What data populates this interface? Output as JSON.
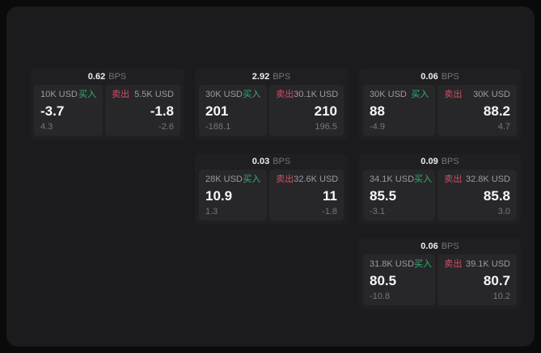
{
  "labels": {
    "unit": "BPS",
    "buy": "买入",
    "sell": "卖出"
  },
  "colors": {
    "buy_green": "#34b072",
    "sell_red": "#d14f63",
    "panel_bg": "#1b1b1d",
    "card_bg": "#1f1f22",
    "pane_bg": "#27272a"
  },
  "cards": [
    {
      "bps": "0.62",
      "buy": {
        "size": "10K USD",
        "value": "-3.7",
        "delta": "4.3"
      },
      "sell": {
        "size": "5.5K USD",
        "value": "-1.8",
        "delta": "-2.6"
      }
    },
    {
      "bps": "2.92",
      "buy": {
        "size": "30K USD",
        "value": "201",
        "delta": "-188.1"
      },
      "sell": {
        "size": "30.1K USD",
        "value": "210",
        "delta": "196.5"
      }
    },
    {
      "bps": "0.06",
      "buy": {
        "size": "30K USD",
        "value": "88",
        "delta": "-4.9"
      },
      "sell": {
        "size": "30K USD",
        "value": "88.2",
        "delta": "4.7"
      }
    },
    {
      "bps": "0.03",
      "buy": {
        "size": "28K USD",
        "value": "10.9",
        "delta": "1.3"
      },
      "sell": {
        "size": "32.6K USD",
        "value": "11",
        "delta": "-1.8"
      }
    },
    {
      "bps": "0.09",
      "buy": {
        "size": "34.1K USD",
        "value": "85.5",
        "delta": "-3.1"
      },
      "sell": {
        "size": "32.8K USD",
        "value": "85.8",
        "delta": "3.0"
      }
    },
    {
      "bps": "0.06",
      "buy": {
        "size": "31.8K USD",
        "value": "80.5",
        "delta": "-10.8"
      },
      "sell": {
        "size": "39.1K USD",
        "value": "80.7",
        "delta": "10.2"
      }
    }
  ]
}
